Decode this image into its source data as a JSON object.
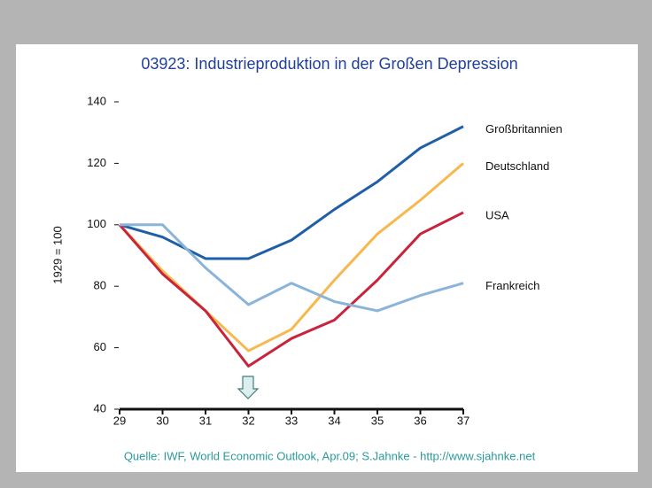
{
  "chart_data": {
    "type": "line",
    "title": "03923: Industrieproduktion in der Großen Depression",
    "y_label": "1929 = 100",
    "source": "Quelle: IWF, World Economic Outlook, Apr.09; S.Jahnke - http://www.sjahnke.net",
    "x": [
      29,
      30,
      31,
      32,
      33,
      34,
      35,
      36,
      37
    ],
    "xlim": [
      29,
      37
    ],
    "xticks": [
      29,
      30,
      31,
      32,
      33,
      34,
      35,
      36,
      37
    ],
    "ylim": [
      40,
      140
    ],
    "yticks": [
      40,
      60,
      80,
      100,
      120,
      140
    ],
    "series": [
      {
        "name": "Großbritannien",
        "color": "#1f5fa8",
        "values": [
          100,
          96,
          89,
          89,
          95,
          105,
          114,
          125,
          132
        ]
      },
      {
        "name": "Deutschland",
        "color": "#f7b84e",
        "values": [
          100,
          85,
          72,
          59,
          66,
          82,
          97,
          108,
          120
        ]
      },
      {
        "name": "USA",
        "color": "#c8243c",
        "values": [
          100,
          84,
          72,
          54,
          63,
          69,
          82,
          97,
          104
        ]
      },
      {
        "name": "Frankreich",
        "color": "#8ab4da",
        "values": [
          100,
          100,
          86,
          74,
          81,
          75,
          72,
          77,
          81
        ]
      }
    ]
  }
}
